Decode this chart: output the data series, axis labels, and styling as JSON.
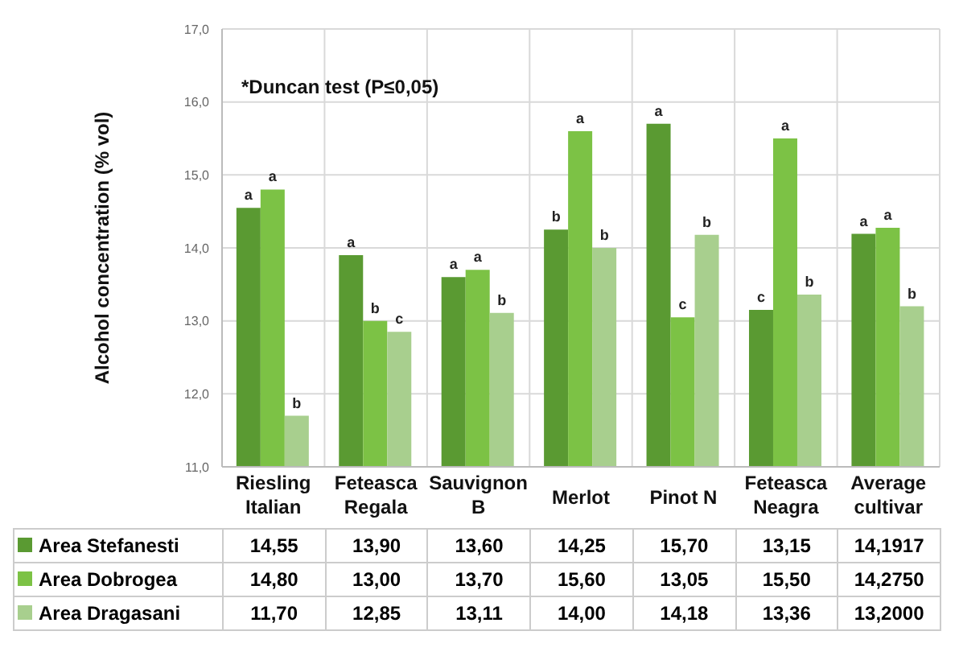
{
  "chart_data": {
    "type": "bar",
    "ylabel": "Alcohol concentration (% vol)",
    "categories": [
      "Riesling Italian",
      "Feteasca Regala",
      "Sauvignon B",
      "Merlot",
      "Pinot N",
      "Feteasca Neagra",
      "Average cultivar"
    ],
    "series": [
      {
        "name": "Area Stefanesti",
        "color": "#5a9a32",
        "values": [
          14.55,
          13.9,
          13.6,
          14.25,
          15.7,
          13.15,
          14.1917
        ],
        "value_labels": [
          "14,55",
          "13,90",
          "13,60",
          "14,25",
          "15,70",
          "13,15",
          "14,1917"
        ]
      },
      {
        "name": "Area Dobrogea",
        "color": "#7cc245",
        "values": [
          14.8,
          13.0,
          13.7,
          15.6,
          13.05,
          15.5,
          14.275
        ],
        "value_labels": [
          "14,80",
          "13,00",
          "13,70",
          "15,60",
          "13,05",
          "15,50",
          "14,2750"
        ]
      },
      {
        "name": "Area Dragasani",
        "color": "#a8cf8e",
        "values": [
          11.7,
          12.85,
          13.11,
          14.0,
          14.18,
          13.36,
          13.2
        ],
        "value_labels": [
          "11,70",
          "12,85",
          "13,11",
          "14,00",
          "14,18",
          "13,36",
          "13,2000"
        ]
      }
    ],
    "ylim": [
      11,
      17
    ],
    "yticks": [
      {
        "value": 11,
        "label": "11,0"
      },
      {
        "value": 12,
        "label": "12,0"
      },
      {
        "value": 13,
        "label": "13,0"
      },
      {
        "value": 14,
        "label": "14,0"
      },
      {
        "value": 15,
        "label": "15,0"
      },
      {
        "value": 16,
        "label": "16,0"
      },
      {
        "value": 17,
        "label": "17,0"
      }
    ],
    "grid": true,
    "legend": "bottom",
    "annotations": [
      "*Duncan test (P≤0,05)",
      "a",
      "a",
      "b",
      "a",
      "b",
      "c",
      "a",
      "a",
      "b",
      "b",
      "a",
      "b",
      "a",
      "c",
      "b",
      "c",
      "a",
      "b",
      "a",
      "a",
      "b"
    ]
  }
}
